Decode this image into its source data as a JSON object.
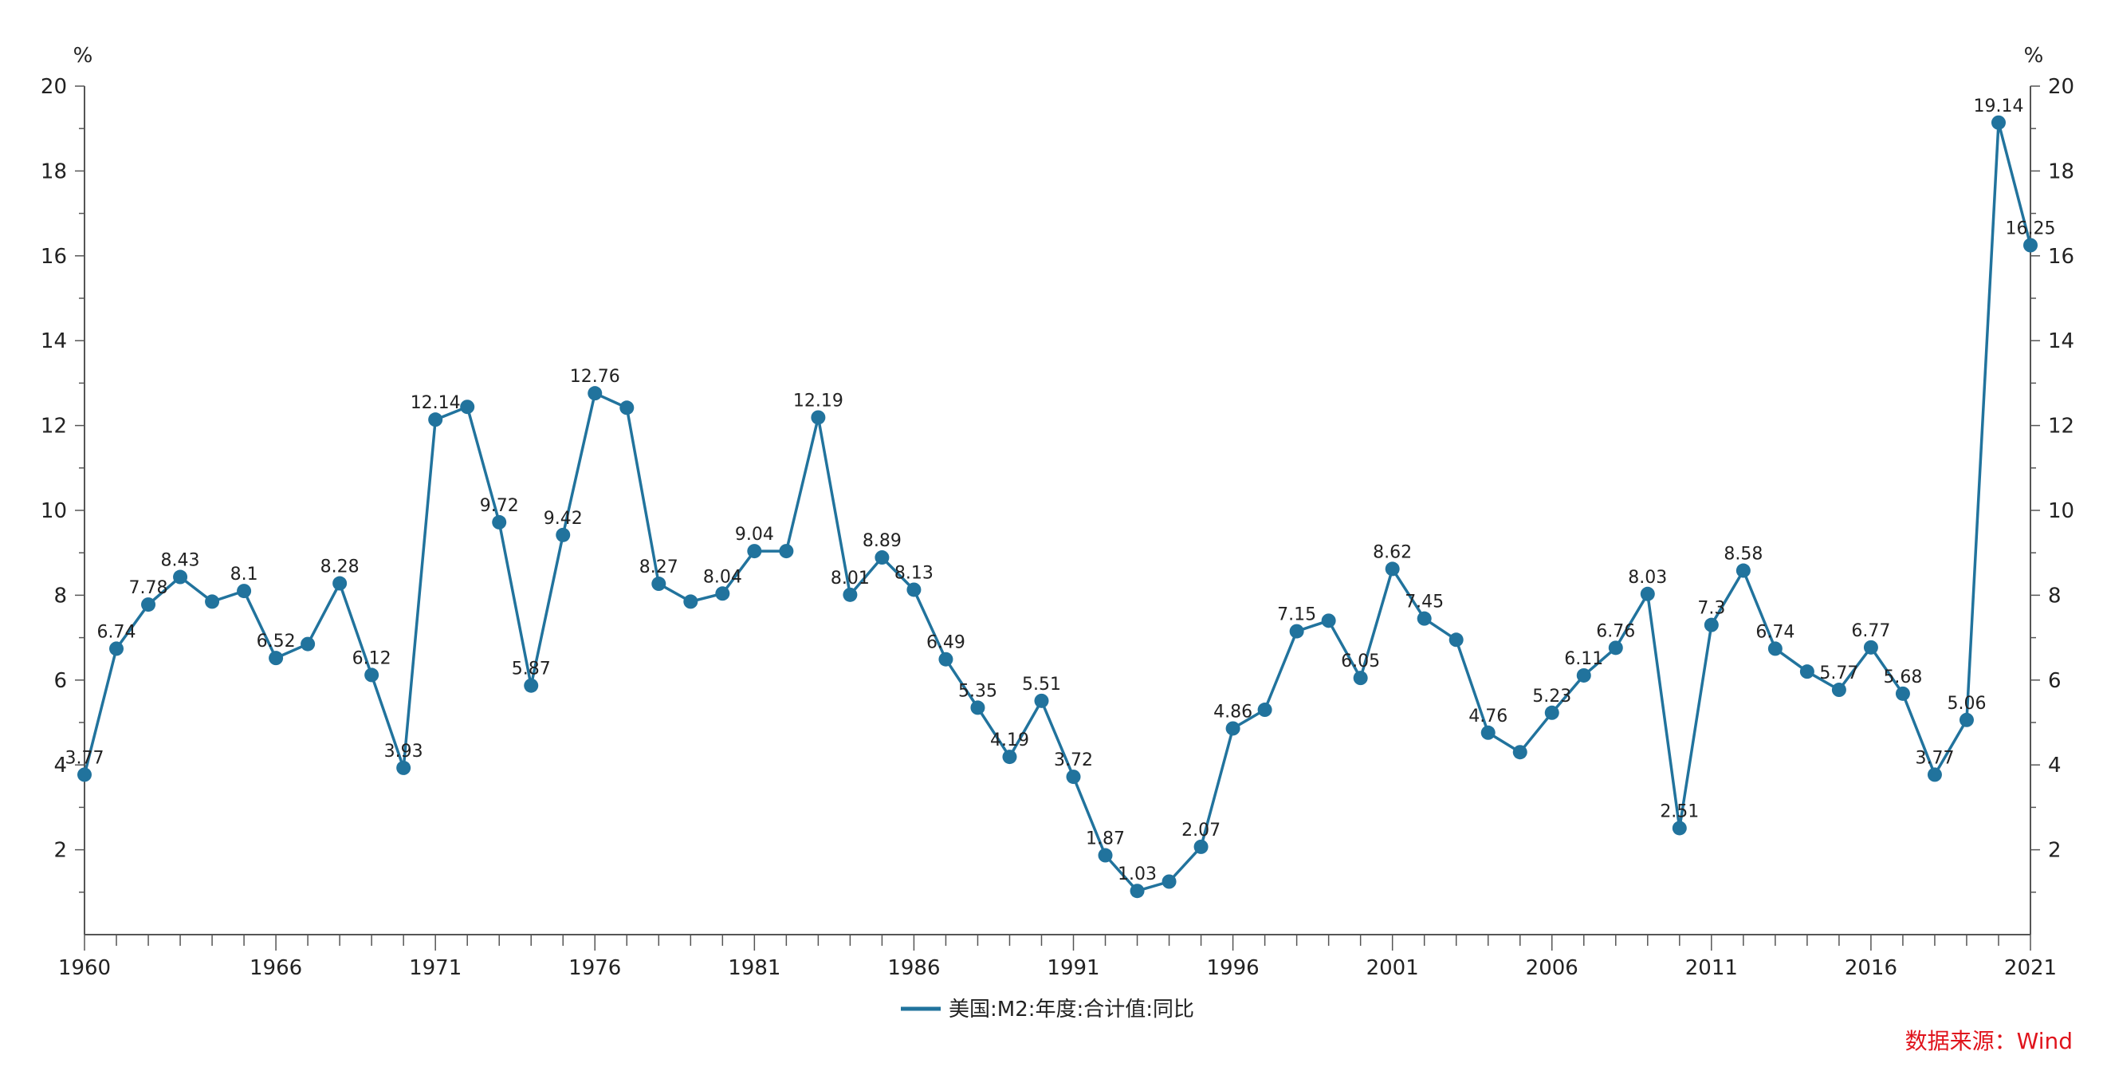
{
  "chart_data": {
    "type": "line",
    "title": "",
    "y_unit_left": "%",
    "y_unit_right": "%",
    "ylim": [
      0,
      20
    ],
    "yticks": [
      2,
      4,
      6,
      8,
      10,
      12,
      14,
      16,
      18,
      20
    ],
    "xlim": [
      1960,
      2021
    ],
    "xticks": [
      1960,
      1966,
      1971,
      1976,
      1981,
      1986,
      1991,
      1996,
      2001,
      2006,
      2011,
      2016,
      2021
    ],
    "legend": "top",
    "legend_position": "bottom-center",
    "series": [
      {
        "name": "美国:M2:年度:合计值:同比",
        "color": "#21739d",
        "x": [
          1960,
          1961,
          1962,
          1963,
          1964,
          1965,
          1966,
          1967,
          1968,
          1969,
          1970,
          1971,
          1972,
          1973,
          1974,
          1975,
          1976,
          1977,
          1978,
          1979,
          1980,
          1981,
          1982,
          1983,
          1984,
          1985,
          1986,
          1987,
          1988,
          1989,
          1990,
          1991,
          1992,
          1993,
          1994,
          1995,
          1996,
          1997,
          1998,
          1999,
          2000,
          2001,
          2002,
          2003,
          2004,
          2005,
          2006,
          2007,
          2008,
          2009,
          2010,
          2011,
          2012,
          2013,
          2014,
          2015,
          2016,
          2017,
          2018,
          2019,
          2020,
          2021
        ],
        "values": [
          3.77,
          6.74,
          7.78,
          8.43,
          7.85,
          8.1,
          6.52,
          6.85,
          8.28,
          6.12,
          3.93,
          12.14,
          12.44,
          9.72,
          5.87,
          9.42,
          12.76,
          12.42,
          8.27,
          7.85,
          8.04,
          9.04,
          9.04,
          12.19,
          8.01,
          8.89,
          8.13,
          6.49,
          5.35,
          4.19,
          5.51,
          3.72,
          1.87,
          1.03,
          1.25,
          2.07,
          4.86,
          5.3,
          7.15,
          7.4,
          6.05,
          8.62,
          7.45,
          6.95,
          4.76,
          4.3,
          5.23,
          6.11,
          6.76,
          8.03,
          2.51,
          7.3,
          8.58,
          6.74,
          6.2,
          5.77,
          6.77,
          5.68,
          3.77,
          5.06,
          19.14,
          16.25
        ],
        "labels": [
          "3.77",
          "6.74",
          "7.78",
          "8.43",
          "",
          "8.1",
          "6.52",
          "",
          "8.28",
          "6.12",
          "3.93",
          "12.14",
          "",
          "9.72",
          "5.87",
          "9.42",
          "12.76",
          "",
          "8.27",
          "",
          "8.04",
          "9.04",
          "",
          "12.19",
          "8.01",
          "8.89",
          "8.13",
          "6.49",
          "5.35",
          "4.19",
          "5.51",
          "3.72",
          "1.87",
          "1.03",
          "",
          "2.07",
          "4.86",
          "",
          "7.15",
          "",
          "6.05",
          "8.62",
          "7.45",
          "",
          "4.76",
          "",
          "5.23",
          "6.11",
          "6.76",
          "8.03",
          "2.51",
          "7.3",
          "8.58",
          "6.74",
          "",
          "5.77",
          "6.77",
          "5.68",
          "3.77",
          "5.06",
          "19.14",
          "16.25"
        ]
      }
    ],
    "source": "数据来源：Wind"
  }
}
